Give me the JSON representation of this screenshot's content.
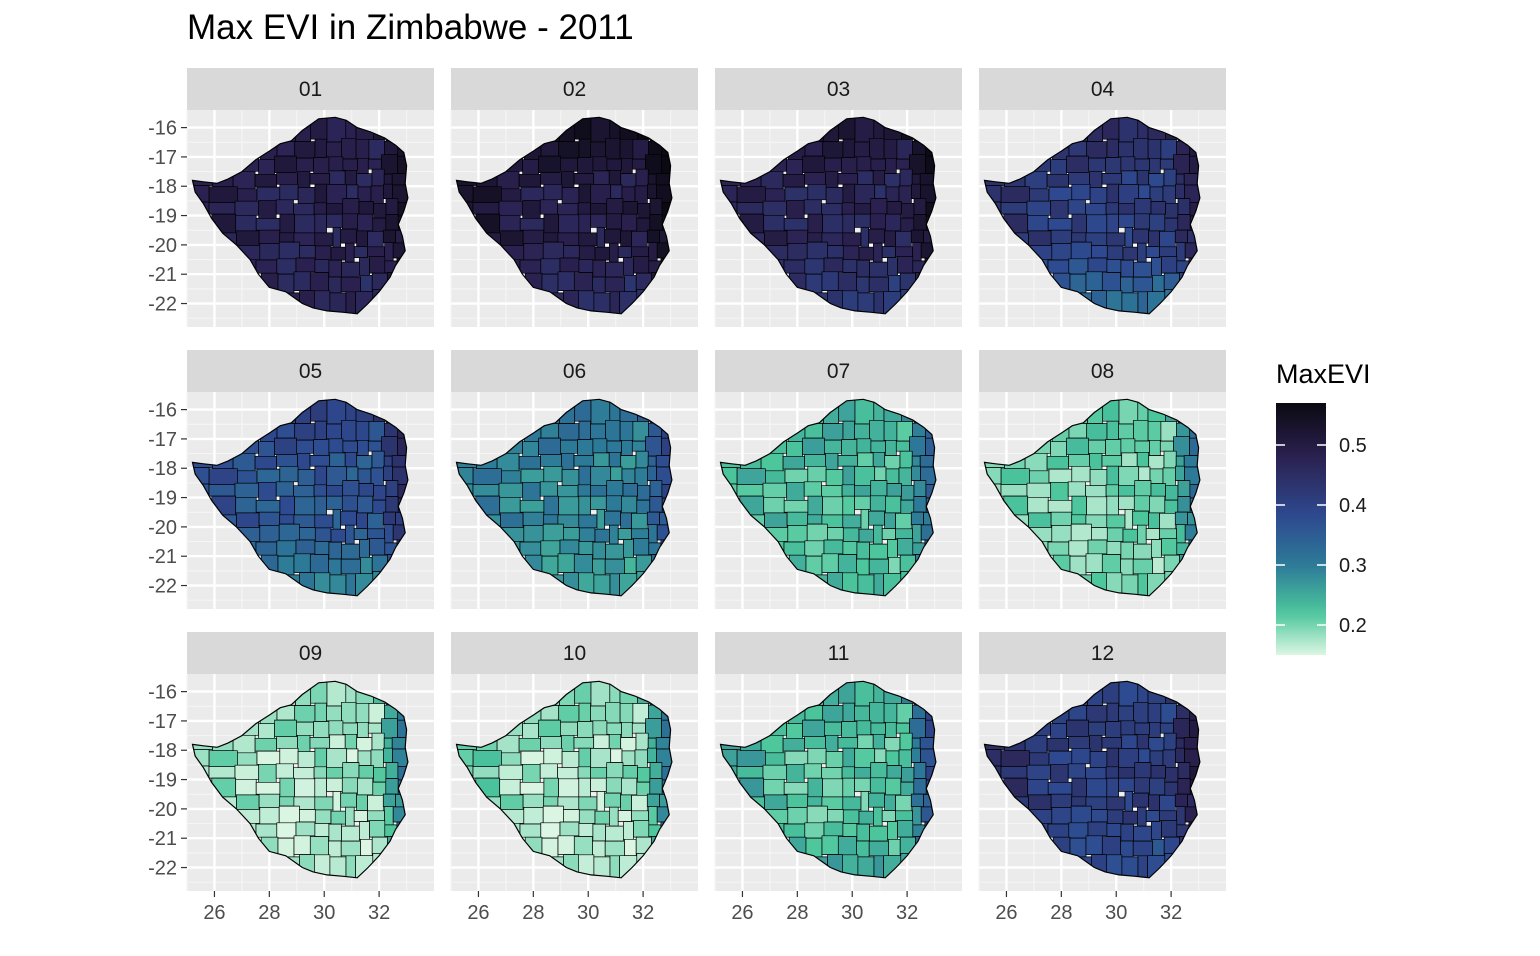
{
  "chart_data": {
    "type": "heatmap",
    "subtype": "choropleth-small-multiples",
    "title": "Max EVI in Zimbabwe - 2011",
    "xlabel": "",
    "ylabel": "",
    "facet_by": "month",
    "facets": [
      "01",
      "02",
      "03",
      "04",
      "05",
      "06",
      "07",
      "08",
      "09",
      "10",
      "11",
      "12"
    ],
    "x_ticks": [
      26,
      28,
      30,
      32
    ],
    "y_ticks": [
      -16,
      -17,
      -18,
      -19,
      -20,
      -21,
      -22
    ],
    "xlim": [
      25,
      34
    ],
    "ylim": [
      -22.8,
      -15.4
    ],
    "grid": true,
    "legend": {
      "title": "MaxEVI",
      "position": "right",
      "range": [
        0.15,
        0.57
      ],
      "ticks": [
        0.5,
        0.4,
        0.3,
        0.2
      ],
      "colors": [
        "#dcf6e3",
        "#4cc69c",
        "#2d7a98",
        "#2e4a90",
        "#2b2150",
        "#0b0912"
      ]
    },
    "monthly_evi": [
      {
        "month": "01",
        "base": 0.48,
        "west": 0.5,
        "north": 0.49,
        "east": 0.52,
        "south": 0.46
      },
      {
        "month": "02",
        "base": 0.49,
        "west": 0.55,
        "north": 0.55,
        "east": 0.55,
        "south": 0.44
      },
      {
        "month": "03",
        "base": 0.47,
        "west": 0.49,
        "north": 0.52,
        "east": 0.53,
        "south": 0.41
      },
      {
        "month": "04",
        "base": 0.41,
        "west": 0.46,
        "north": 0.46,
        "east": 0.47,
        "south": 0.31
      },
      {
        "month": "05",
        "base": 0.36,
        "west": 0.39,
        "north": 0.41,
        "east": 0.44,
        "south": 0.28
      },
      {
        "month": "06",
        "base": 0.29,
        "west": 0.31,
        "north": 0.32,
        "east": 0.38,
        "south": 0.25
      },
      {
        "month": "07",
        "base": 0.23,
        "west": 0.24,
        "north": 0.25,
        "east": 0.33,
        "south": 0.22
      },
      {
        "month": "08",
        "base": 0.2,
        "west": 0.21,
        "north": 0.22,
        "east": 0.31,
        "south": 0.19
      },
      {
        "month": "09",
        "base": 0.18,
        "west": 0.2,
        "north": 0.19,
        "east": 0.3,
        "south": 0.16
      },
      {
        "month": "10",
        "base": 0.18,
        "west": 0.23,
        "north": 0.2,
        "east": 0.3,
        "south": 0.16
      },
      {
        "month": "11",
        "base": 0.22,
        "west": 0.28,
        "north": 0.25,
        "east": 0.38,
        "south": 0.24
      },
      {
        "month": "12",
        "base": 0.41,
        "west": 0.47,
        "north": 0.4,
        "east": 0.49,
        "south": 0.37
      }
    ]
  }
}
